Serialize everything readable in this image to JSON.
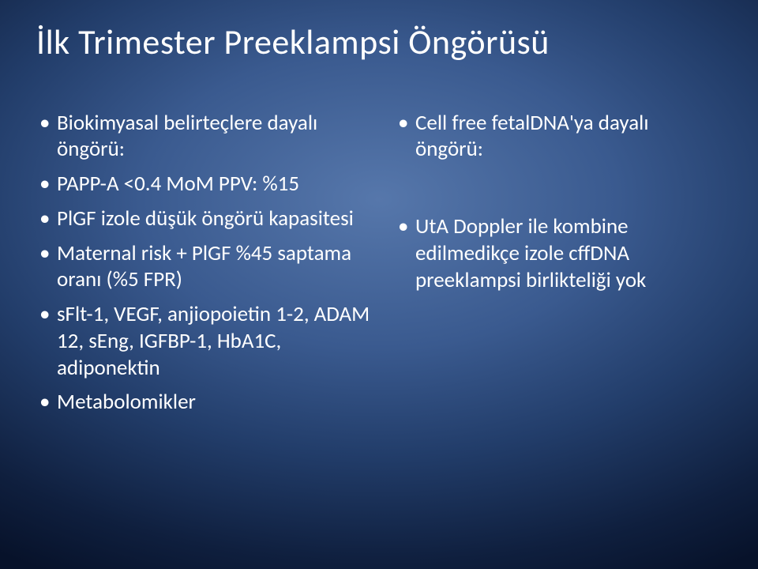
{
  "title": {
    "text": "İlk Trimester Preeklampsi Öngörüsü",
    "fontsize": 44,
    "color": "#ffffff"
  },
  "body": {
    "fontsize": 27,
    "color": "#ffffff",
    "bullet_color": "#ffffff"
  },
  "left_column": {
    "items": [
      "Biokimyasal belirteçlere dayalı öngörü:",
      "PAPP-A <0.4 MoM PPV: %15",
      "PlGF  izole düşük öngörü kapasitesi",
      "Maternal risk + PlGF  %45 saptama oranı (%5 FPR)",
      "sFlt-1, VEGF, anjiopoietin 1-2, ADAM 12, sEng, IGFBP-1, HbA1C, adiponektin",
      "Metabolomikler"
    ]
  },
  "right_column": {
    "items": [
      "Cell free fetalDNA'ya dayalı öngörü:",
      "UtA Doppler ile kombine edilmedikçe  izole cffDNA preeklampsi birlikteliği yok"
    ]
  },
  "background": {
    "center_color": "#5677ab",
    "edge_color": "#07122a"
  }
}
